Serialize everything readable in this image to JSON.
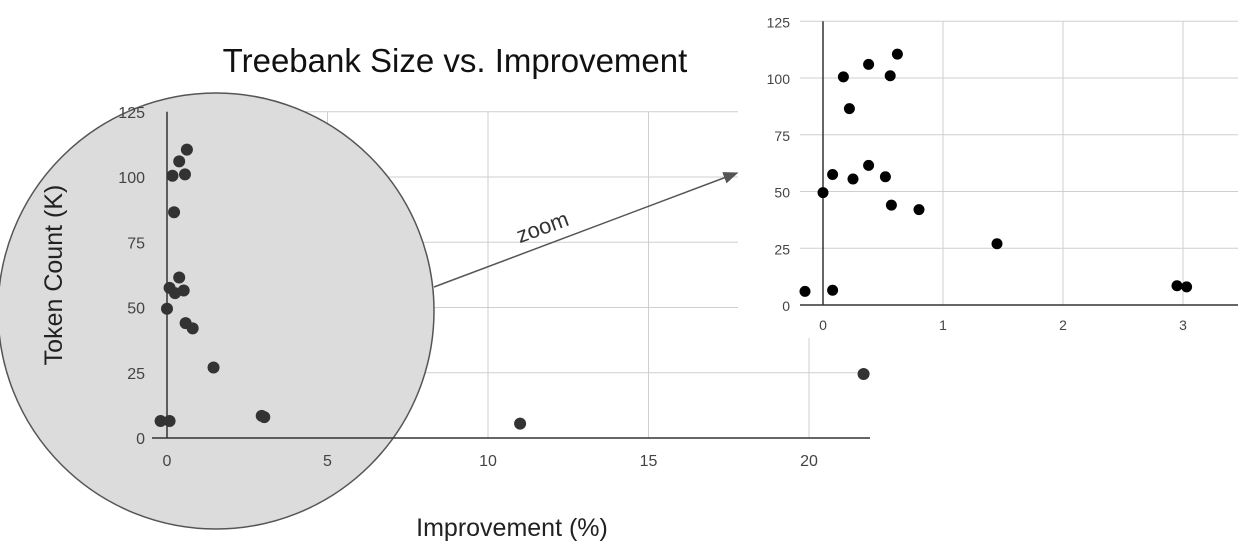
{
  "chart_data": [
    {
      "type": "scatter",
      "title": "Treebank Size vs. Improvement",
      "xlabel": "Improvement (%)",
      "ylabel": "Token Count (K)",
      "xlim": [
        -0.5,
        22
      ],
      "ylim": [
        0,
        125
      ],
      "x_ticks": [
        "0",
        "5",
        "10",
        "15",
        "20"
      ],
      "y_ticks": [
        "0",
        "25",
        "50",
        "75",
        "100",
        "125"
      ],
      "grid": true,
      "points": [
        {
          "x": -0.2,
          "y": 6.5
        },
        {
          "x": 0.08,
          "y": 6.5
        },
        {
          "x": 0.0,
          "y": 49.5
        },
        {
          "x": 0.08,
          "y": 57.5
        },
        {
          "x": 0.25,
          "y": 55.5
        },
        {
          "x": 0.38,
          "y": 61.5
        },
        {
          "x": 0.52,
          "y": 56.5
        },
        {
          "x": 0.58,
          "y": 44
        },
        {
          "x": 0.8,
          "y": 42
        },
        {
          "x": 1.45,
          "y": 27
        },
        {
          "x": 2.95,
          "y": 8.5
        },
        {
          "x": 3.03,
          "y": 8
        },
        {
          "x": 0.17,
          "y": 100.5
        },
        {
          "x": 0.22,
          "y": 86.5
        },
        {
          "x": 0.38,
          "y": 106
        },
        {
          "x": 0.56,
          "y": 101
        },
        {
          "x": 0.62,
          "y": 110.5
        },
        {
          "x": 11.0,
          "y": 5.5
        },
        {
          "x": 21.7,
          "y": 24.5
        }
      ]
    },
    {
      "type": "scatter",
      "title": "",
      "xlabel": "",
      "ylabel": "",
      "xlim": [
        -0.2,
        3.5
      ],
      "ylim": [
        0,
        125
      ],
      "x_ticks": [
        "0",
        "1",
        "2",
        "3"
      ],
      "y_ticks": [
        "0",
        "25",
        "50",
        "75",
        "100",
        "125"
      ],
      "grid": true,
      "points": [
        {
          "x": -0.15,
          "y": 6
        },
        {
          "x": 0.08,
          "y": 6.5
        },
        {
          "x": 0.0,
          "y": 49.5
        },
        {
          "x": 0.08,
          "y": 57.5
        },
        {
          "x": 0.25,
          "y": 55.5
        },
        {
          "x": 0.38,
          "y": 61.5
        },
        {
          "x": 0.52,
          "y": 56.5
        },
        {
          "x": 0.57,
          "y": 44
        },
        {
          "x": 0.8,
          "y": 42
        },
        {
          "x": 1.45,
          "y": 27
        },
        {
          "x": 2.95,
          "y": 8.5
        },
        {
          "x": 3.03,
          "y": 8
        },
        {
          "x": 0.17,
          "y": 100.5
        },
        {
          "x": 0.22,
          "y": 86.5
        },
        {
          "x": 0.38,
          "y": 106
        },
        {
          "x": 0.56,
          "y": 101
        },
        {
          "x": 0.62,
          "y": 110.5
        }
      ]
    }
  ],
  "annotation": {
    "zoom_label": "zoom"
  }
}
